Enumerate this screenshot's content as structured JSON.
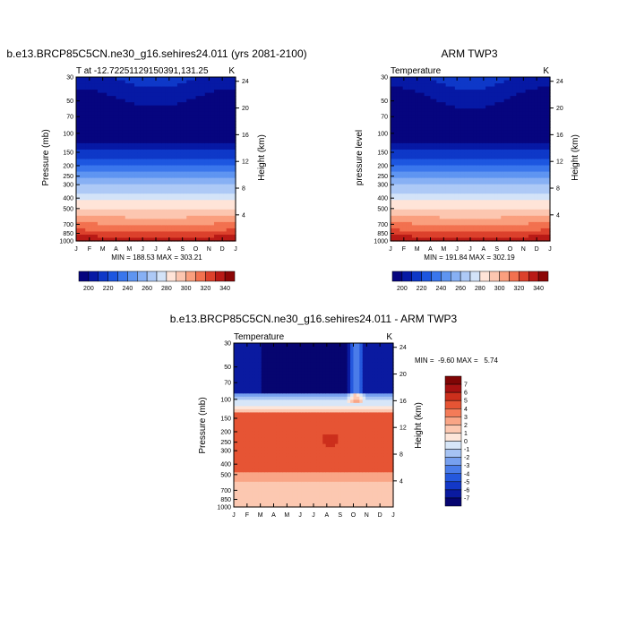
{
  "chart_data": [
    {
      "type": "heatmap",
      "title": "b.e13.BRCP85C5CN.ne30_g16.sehires24.011 (yrs 2081-2100)",
      "subtitle_left": "T at -12.72251129150391,131.25",
      "subtitle_right": "K",
      "xlabel": "",
      "ylabel": "Pressure (mb)",
      "ylabel_right": "Height (km)",
      "x_ticks": [
        "J",
        "F",
        "M",
        "A",
        "M",
        "J",
        "J",
        "A",
        "S",
        "O",
        "N",
        "D",
        "J"
      ],
      "y_ticks": [
        "30",
        "50",
        "70",
        "100",
        "150",
        "200",
        "250",
        "300",
        "400",
        "500",
        "700",
        "850",
        "1000"
      ],
      "y_ticks_right": [
        "24",
        "20",
        "16",
        "12",
        "8",
        "4"
      ],
      "stats": "MIN = 188.53 MAX = 303.21",
      "colorbar_labels": [
        "200",
        "220",
        "240",
        "260",
        "280",
        "300",
        "320",
        "340"
      ],
      "colorbar_orientation": "horizontal"
    },
    {
      "type": "heatmap",
      "title": "ARM TWP3",
      "subtitle_left": "Temperature",
      "subtitle_right": "K",
      "xlabel": "",
      "ylabel": "pressure level",
      "ylabel_right": "Height (km)",
      "x_ticks": [
        "J",
        "F",
        "M",
        "A",
        "M",
        "J",
        "J",
        "A",
        "S",
        "O",
        "N",
        "D",
        "J"
      ],
      "y_ticks": [
        "30",
        "50",
        "70",
        "100",
        "150",
        "200",
        "250",
        "300",
        "400",
        "500",
        "700",
        "850",
        "1000"
      ],
      "y_ticks_right": [
        "24",
        "20",
        "16",
        "12",
        "8",
        "4"
      ],
      "stats": "MIN = 191.84 MAX = 302.19",
      "colorbar_labels": [
        "200",
        "220",
        "240",
        "260",
        "280",
        "300",
        "320",
        "340"
      ],
      "colorbar_orientation": "horizontal"
    },
    {
      "type": "heatmap",
      "title": "b.e13.BRCP85C5CN.ne30_g16.sehires24.011 - ARM TWP3",
      "subtitle_left": "Temperature",
      "subtitle_right": "K",
      "xlabel": "",
      "ylabel": "Pressure (mb)",
      "ylabel_right": "Height (km)",
      "x_ticks": [
        "J",
        "F",
        "M",
        "A",
        "M",
        "J",
        "J",
        "A",
        "S",
        "O",
        "N",
        "D",
        "J"
      ],
      "y_ticks": [
        "30",
        "50",
        "70",
        "100",
        "150",
        "200",
        "250",
        "300",
        "400",
        "500",
        "700",
        "850",
        "1000"
      ],
      "y_ticks_right": [
        "24",
        "20",
        "16",
        "12",
        "8",
        "4"
      ],
      "stats": "MIN =  -9.60 MAX =   5.74",
      "colorbar_labels": [
        "7",
        "6",
        "5",
        "4",
        "3",
        "2",
        "1",
        "0",
        "-1",
        "-2",
        "-3",
        "-4",
        "-5",
        "-6",
        "-7"
      ],
      "colorbar_orientation": "vertical"
    }
  ],
  "colors": {
    "scale12": [
      "#06057f",
      "#0619a5",
      "#0e38c8",
      "#1d56e0",
      "#3a76ec",
      "#5f95f1",
      "#87b0f4",
      "#adc9f6",
      "#d3e3f8",
      "#ffe4d8",
      "#fcc6b0",
      "#fa9f7e",
      "#f2714f",
      "#dc412c",
      "#b91a16",
      "#8c0606"
    ],
    "diff16": [
      "#060570",
      "#0a1aa0",
      "#1338c8",
      "#2558dd",
      "#4a7ce9",
      "#77a0ef",
      "#a6c3f3",
      "#d7e6f8",
      "#fde6da",
      "#fcc8b1",
      "#f9a586",
      "#f47b58",
      "#e65434",
      "#cc2f1c",
      "#a61111",
      "#7f0505"
    ]
  }
}
